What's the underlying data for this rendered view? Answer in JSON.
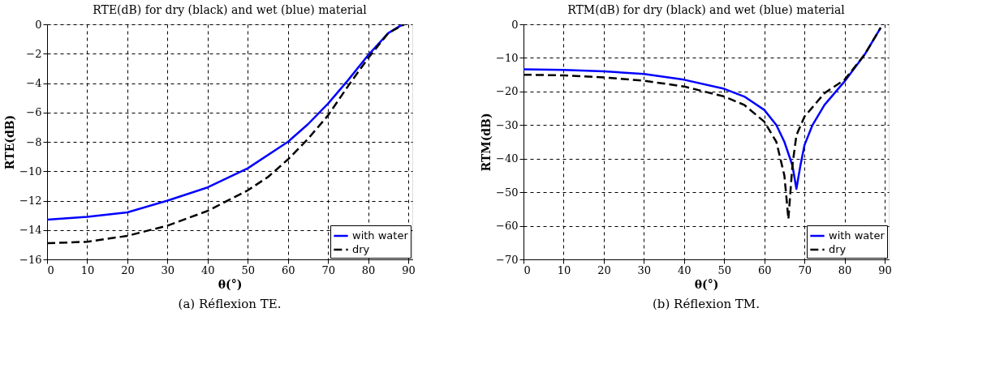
{
  "chart_data": [
    {
      "type": "line",
      "title": "RTE(dB) for dry (black) and wet (blue) material",
      "xlabel": "θ(°)",
      "ylabel": "RTE(dB)",
      "annotations": [
        "(a) Réflexion TE."
      ],
      "xlim": [
        0,
        91
      ],
      "xticks": [
        0,
        10,
        20,
        30,
        40,
        50,
        60,
        70,
        80,
        90
      ],
      "ylim": [
        -16,
        0
      ],
      "yticks": [
        -16,
        -14,
        -12,
        -10,
        -8,
        -6,
        -4,
        -2,
        0
      ],
      "grid": true,
      "legend": "bottom right",
      "series": [
        {
          "name": "with water",
          "color": "#0000ff",
          "line_style": "solid",
          "x": [
            0,
            10,
            20,
            30,
            40,
            50,
            60,
            65,
            70,
            75,
            80,
            85,
            88,
            89
          ],
          "values": [
            -13.3,
            -13.1,
            -12.8,
            -12.0,
            -11.1,
            -9.8,
            -8.0,
            -6.8,
            -5.4,
            -3.8,
            -2.1,
            -0.6,
            -0.1,
            0
          ]
        },
        {
          "name": "dry",
          "color": "#000000",
          "line_style": "dashed",
          "x": [
            0,
            10,
            20,
            30,
            40,
            50,
            55,
            60,
            65,
            70,
            75,
            80,
            85,
            89
          ],
          "values": [
            -14.9,
            -14.8,
            -14.4,
            -13.7,
            -12.7,
            -11.3,
            -10.4,
            -9.2,
            -7.8,
            -6.2,
            -4.2,
            -2.3,
            -0.6,
            0
          ]
        }
      ]
    },
    {
      "type": "line",
      "title": "RTM(dB) for dry (black) and wet (blue) material",
      "xlabel": "θ(°)",
      "ylabel": "RTM(dB)",
      "annotations": [
        "(b) Réflexion TM."
      ],
      "xlim": [
        0,
        91
      ],
      "xticks": [
        0,
        10,
        20,
        30,
        40,
        50,
        60,
        70,
        80,
        90
      ],
      "ylim": [
        -70,
        0
      ],
      "yticks": [
        -70,
        -60,
        -50,
        -40,
        -30,
        -20,
        -10,
        0
      ],
      "grid": true,
      "legend": "bottom right",
      "series": [
        {
          "name": "with water",
          "color": "#0000ff",
          "line_style": "solid",
          "x": [
            0,
            10,
            20,
            30,
            40,
            50,
            55,
            60,
            63,
            65,
            67,
            68,
            69,
            70,
            72,
            75,
            80,
            85,
            89
          ],
          "values": [
            -13.4,
            -13.6,
            -14.0,
            -14.8,
            -16.5,
            -19.2,
            -21.5,
            -25.5,
            -30,
            -35,
            -42,
            -49,
            -42,
            -36,
            -30,
            -24,
            -17,
            -9,
            -1
          ]
        },
        {
          "name": "dry",
          "color": "#000000",
          "line_style": "dashed",
          "x": [
            0,
            10,
            20,
            30,
            40,
            50,
            55,
            60,
            63,
            65,
            66,
            67,
            68,
            70,
            75,
            80,
            85,
            89
          ],
          "values": [
            -15,
            -15.2,
            -15.8,
            -16.8,
            -18.5,
            -21.5,
            -24,
            -29,
            -35,
            -45,
            -58,
            -42,
            -33,
            -27.5,
            -20.5,
            -16.5,
            -9,
            -1
          ]
        }
      ]
    }
  ]
}
